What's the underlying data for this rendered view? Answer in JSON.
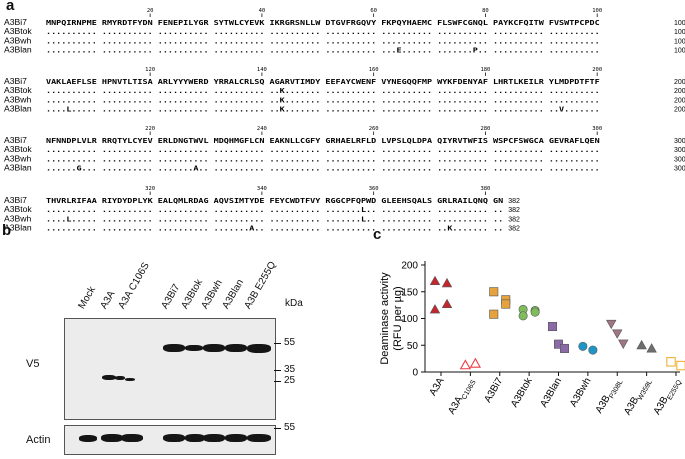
{
  "panel_a": {
    "letter": "a",
    "rows": [
      {
        "ruler": [
          {
            "label": "20",
            "col": 19
          },
          {
            "label": "40",
            "col": 39
          },
          {
            "label": "60",
            "col": 59
          },
          {
            "label": "80",
            "col": 79
          },
          {
            "label": "100",
            "col": 99
          }
        ],
        "lines": [
          {
            "name": "A3Bi7",
            "seq": "MNPQIRNPME RMYRDTFYDN FENEPILYGR SYTWLCYEVK IKRGRSNLLW DTGVFRGQVY FKPQYHAEMC FLSWFCGNQL PAYKCFQITW FVSWTPCPDC",
            "end": "100"
          },
          {
            "name": "A3Btok",
            "seq": ".......... .......... .......... .......... .......... .......... .......... .......... .......... ..........",
            "end": "100"
          },
          {
            "name": "A3Bwh",
            "seq": ".......... .......... .......... .......... .......... .......... .......... .......... .......... ..........",
            "end": "100"
          },
          {
            "name": "A3Blan",
            "seq": ".......... .......... .......... .......... .......... .......... ...E...... .......P.. .......... ..........",
            "end": "100"
          }
        ]
      },
      {
        "ruler": [
          {
            "label": "120",
            "col": 19
          },
          {
            "label": "140",
            "col": 39
          },
          {
            "label": "160",
            "col": 59
          },
          {
            "label": "180",
            "col": 79
          },
          {
            "label": "200",
            "col": 99
          }
        ],
        "lines": [
          {
            "name": "A3Bi7",
            "seq": "VAKLAEFLSE HPNVTLTISA ARLYYYWERD YRRALCRLSQ AGARVTIMDY EEFAYCWENF VYNEGQQFMP WYKFDENYAF LHRTLKEILR YLMDPDTFTF",
            "end": "200"
          },
          {
            "name": "A3Btok",
            "seq": ".......... .......... .......... .......... ..K....... .......... .......... .......... .......... ..........",
            "end": "200"
          },
          {
            "name": "A3Bwh",
            "seq": ".......... .......... .......... .......... ..K....... .......... .......... .......... .......... ..........",
            "end": "200"
          },
          {
            "name": "A3Blan",
            "seq": "....L..... .......... .......... .......... ..K....... .......... .......... .......... .......... ..V.......",
            "end": "200"
          }
        ]
      },
      {
        "ruler": [
          {
            "label": "220",
            "col": 19
          },
          {
            "label": "240",
            "col": 39
          },
          {
            "label": "260",
            "col": 59
          },
          {
            "label": "280",
            "col": 79
          },
          {
            "label": "300",
            "col": 99
          }
        ],
        "lines": [
          {
            "name": "A3Bi7",
            "seq": "NFNNDPLVLR RRQTYLCYEV ERLDNGTWVL MDQHMGFLCN EAKNLLCGFY GRHAELRFLD LVPSLQLDPA QIYRVTWFIS WSPCFSWGCA GEVRAFLQEN",
            "end": "300"
          },
          {
            "name": "A3Btok",
            "seq": ".......... .......... .......... .......... .......... .......... .......... .......... .......... ..........",
            "end": "300"
          },
          {
            "name": "A3Bwh",
            "seq": ".......... .......... .......... .......... .......... .......... .......... .......... .......... ..........",
            "end": "300"
          },
          {
            "name": "A3Blan",
            "seq": "......G... .......... .......A.. .......... .......... .......... .......... .......... .......... ..........",
            "end": "300"
          }
        ]
      },
      {
        "ruler": [
          {
            "label": "320",
            "col": 19
          },
          {
            "label": "340",
            "col": 39
          },
          {
            "label": "360",
            "col": 59
          },
          {
            "label": "380",
            "col": 79
          }
        ],
        "lines": [
          {
            "name": "A3Bi7",
            "seq": "THVRLRIFAA RIYDYDPLYK EALQMLRDAG AQVSIMTYDE FEYCWDTFVY RGGCPFQPWD GLEEHSQALS GRLRAILQNQ GN",
            "end": "382"
          },
          {
            "name": "A3Btok",
            "seq": ".......... .......... .......... .......... .......... .......L.. .......... .......... ..",
            "end": "382"
          },
          {
            "name": "A3Bwh",
            "seq": "....L..... .......... .......... .......... .......... .......L.. .......... .......... ..",
            "end": "382"
          },
          {
            "name": "A3Blan",
            "seq": ".......... .......... .......... .......A.. .......... .......... .......... ..K....... ..",
            "end": "382"
          }
        ]
      }
    ]
  },
  "panel_b": {
    "letter": "b",
    "lanes": [
      "Mock",
      "A3A",
      "A3A C106S",
      "A3Bi7",
      "A3Btok",
      "A3Bwh",
      "A3Blan",
      "A3B E255Q"
    ],
    "kda_label": "kDa",
    "v5_label": "V5",
    "actin_label": "Actin",
    "v5_markers": [
      "55",
      "35",
      "25"
    ],
    "actin_marker": "55"
  },
  "panel_c": {
    "letter": "c",
    "chart_data": {
      "type": "scatter",
      "ylabel_line1": "Deaminase activity",
      "ylabel_line2": "(RFU per µg)",
      "ylim": [
        0,
        200
      ],
      "yticks": [
        "0",
        "50",
        "100",
        "150",
        "200"
      ],
      "categories": [
        {
          "label": "A3A",
          "sub": "",
          "color": "#c1272d",
          "marker": "triangle-up",
          "filled": true,
          "values": [
            170,
            166,
            127,
            117
          ]
        },
        {
          "label": "A3A",
          "sub": "C106S",
          "color": "#ec3b43",
          "marker": "triangle-up",
          "filled": false,
          "values": [
            13,
            16
          ]
        },
        {
          "label": "A3Bi7",
          "sub": "",
          "color": "#e6a23c",
          "marker": "square",
          "filled": true,
          "values": [
            150,
            135,
            127,
            108
          ]
        },
        {
          "label": "A3Btok",
          "sub": "",
          "color": "#7fbd5a",
          "marker": "circle",
          "filled": true,
          "values": [
            117,
            115,
            112,
            105
          ]
        },
        {
          "label": "A3Blan",
          "sub": "",
          "color": "#8b6aa8",
          "marker": "square",
          "filled": true,
          "values": [
            85,
            52,
            44
          ]
        },
        {
          "label": "A3Bwh",
          "sub": "",
          "color": "#1e95c7",
          "marker": "circle",
          "filled": true,
          "values": [
            48,
            41
          ]
        },
        {
          "label": "A3B",
          "sub": "P308L",
          "color": "#a07585",
          "marker": "triangle-down",
          "filled": true,
          "values": [
            90,
            72,
            53
          ]
        },
        {
          "label": "A3B",
          "sub": "W359L",
          "color": "#6e6e6e",
          "marker": "triangle-up",
          "filled": true,
          "values": [
            50,
            44
          ]
        },
        {
          "label": "A3B",
          "sub": "E255Q",
          "color": "#f0b135",
          "marker": "square",
          "filled": false,
          "values": [
            19,
            12
          ]
        }
      ]
    }
  }
}
